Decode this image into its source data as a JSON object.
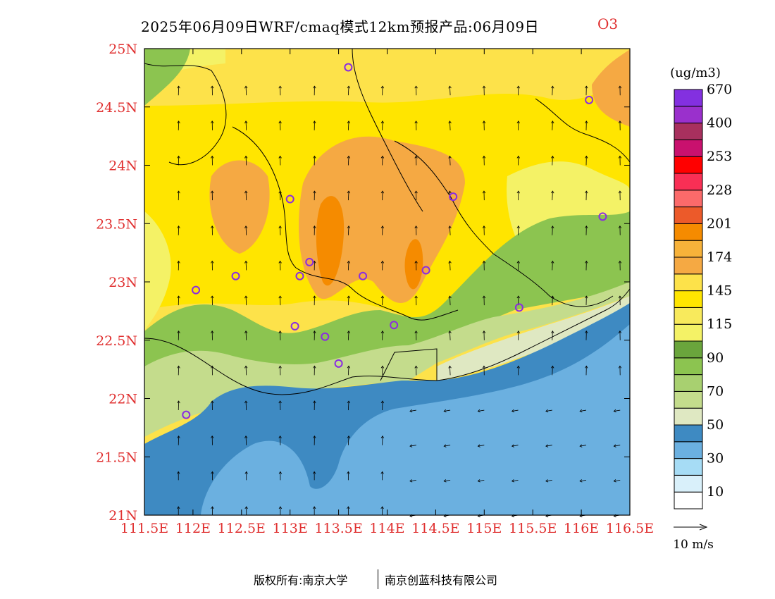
{
  "title": {
    "main": "2025年06月09日WRF/cmaq模式12km预报产品:06月09日",
    "species": "O3"
  },
  "map": {
    "x_ticks": [
      "111.5E",
      "112E",
      "112.5E",
      "113E",
      "113.5E",
      "114E",
      "114.5E",
      "115E",
      "115.5E",
      "116E",
      "116.5E"
    ],
    "y_ticks": [
      "21N",
      "21.5N",
      "22N",
      "22.5N",
      "23N",
      "23.5N",
      "24N",
      "24.5N",
      "25N"
    ],
    "tick_label_color": "#e03030",
    "extent": {
      "lon": [
        111.5,
        116.5
      ],
      "lat": [
        21,
        25
      ]
    }
  },
  "colorbar": {
    "unit": "(ug/m3)",
    "labels": [
      "10",
      "30",
      "50",
      "70",
      "90",
      "115",
      "145",
      "174",
      "201",
      "228",
      "253",
      "400",
      "670"
    ],
    "colors_bottom_to_top": [
      "#ffffff",
      "#d9f0fa",
      "#a6dcf5",
      "#6bb0e0",
      "#3e8ac2",
      "#dfe8c2",
      "#c4dc8c",
      "#a8d070",
      "#8cc450",
      "#6aa53c",
      "#f4f266",
      "#f8ea5c",
      "#ffe500",
      "#fde24a",
      "#f5a943",
      "#f7b23a",
      "#f58b00",
      "#ec5a2a",
      "#fb6a6a",
      "#f92f55",
      "#ff0000",
      "#c9116e",
      "#a8305e",
      "#9a30cc",
      "#8330e0"
    ]
  },
  "wind_scale": {
    "label": "10 m/s"
  },
  "stations": [
    [
      113.6,
      24.84
    ],
    [
      116.08,
      24.56
    ],
    [
      113.0,
      23.71
    ],
    [
      114.68,
      23.73
    ],
    [
      116.22,
      23.56
    ],
    [
      112.44,
      23.05
    ],
    [
      113.1,
      23.05
    ],
    [
      113.2,
      23.17
    ],
    [
      113.75,
      23.05
    ],
    [
      114.4,
      23.1
    ],
    [
      112.03,
      22.93
    ],
    [
      113.05,
      22.62
    ],
    [
      113.36,
      22.53
    ],
    [
      114.07,
      22.63
    ],
    [
      115.36,
      22.78
    ],
    [
      113.5,
      22.3
    ],
    [
      111.93,
      21.86
    ]
  ],
  "footer": {
    "copyright": "版权所有:南京大学",
    "company": "南京创蓝科技有限公司"
  }
}
